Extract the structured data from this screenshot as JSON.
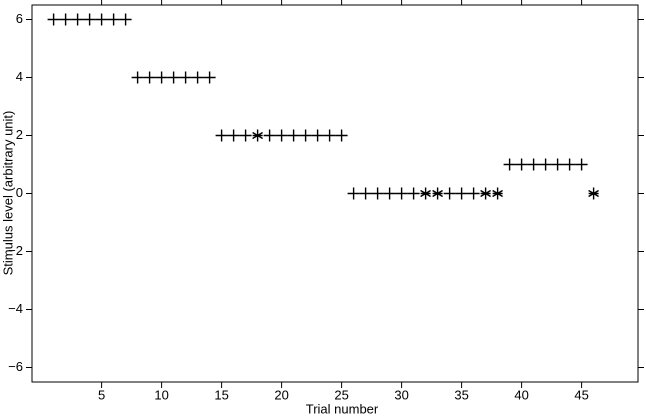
{
  "chart_data": {
    "type": "scatter",
    "x_label": "Trial number",
    "y_label": "Stimulus level (arbitrary unit)",
    "xlim": [
      -0.8,
      49.7
    ],
    "ylim": [
      -6.5,
      6.5
    ],
    "xticks": [
      5,
      10,
      15,
      20,
      25,
      30,
      35,
      40,
      45
    ],
    "yticks": [
      {
        "value": -6,
        "label": "−6"
      },
      {
        "value": -4,
        "label": "−4"
      },
      {
        "value": -2,
        "label": "−2"
      },
      0,
      2,
      4,
      6
    ],
    "mirror_ticks": true,
    "series": [
      {
        "marker": "+",
        "color": "#000000",
        "x": [
          1,
          2,
          3,
          4,
          5,
          6,
          7,
          8,
          9,
          10,
          11,
          12,
          13,
          14,
          15,
          16,
          17,
          19,
          20,
          21,
          22,
          23,
          24,
          25,
          26,
          27,
          28,
          29,
          30,
          31,
          34,
          35,
          36,
          39,
          40,
          41,
          42,
          43,
          44,
          45
        ],
        "y": [
          6,
          6,
          6,
          6,
          6,
          6,
          6,
          4,
          4,
          4,
          4,
          4,
          4,
          4,
          2,
          2,
          2,
          2,
          2,
          2,
          2,
          2,
          2,
          2,
          0,
          0,
          0,
          0,
          0,
          0,
          0,
          0,
          0,
          1,
          1,
          1,
          1,
          1,
          1,
          1
        ]
      },
      {
        "marker": "*",
        "color": "#000000",
        "x": [
          18,
          32,
          33,
          37,
          38,
          46
        ],
        "y": [
          2,
          0,
          0,
          0,
          0,
          0
        ]
      }
    ]
  }
}
